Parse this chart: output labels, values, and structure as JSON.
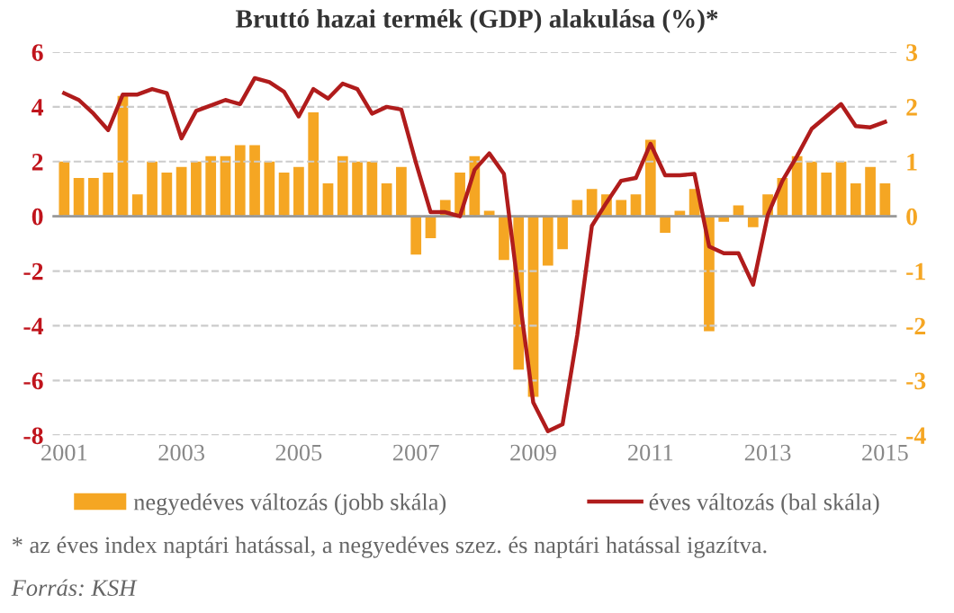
{
  "chart_data": {
    "type": "bar",
    "title": "Bruttó hazai termék (GDP) alakulása (%)*",
    "categories": [
      "2001",
      null,
      null,
      null,
      null,
      null,
      null,
      null,
      "2003",
      null,
      null,
      null,
      null,
      null,
      null,
      null,
      "2005",
      null,
      null,
      null,
      null,
      null,
      null,
      null,
      "2007",
      null,
      null,
      null,
      null,
      null,
      null,
      null,
      "2009",
      null,
      null,
      null,
      null,
      null,
      null,
      null,
      "2011",
      null,
      null,
      null,
      null,
      null,
      null,
      null,
      "2013",
      null,
      null,
      null,
      null,
      null,
      null,
      null,
      "2015"
    ],
    "series": [
      {
        "name": "negyedéves változás (jobb skála)",
        "axis": "y2",
        "color": "#f5a623",
        "values": [
          1.0,
          0.7,
          0.7,
          0.8,
          2.2,
          0.4,
          1.0,
          0.8,
          0.9,
          1.0,
          1.1,
          1.1,
          1.3,
          1.3,
          1.0,
          0.8,
          0.9,
          1.9,
          0.6,
          1.1,
          1.0,
          1.0,
          0.6,
          0.9,
          -0.7,
          -0.4,
          0.3,
          0.8,
          1.1,
          0.1,
          -0.8,
          -2.8,
          -3.3,
          -0.9,
          -0.6,
          0.3,
          0.5,
          0.4,
          0.3,
          0.4,
          1.4,
          -0.3,
          0.1,
          0.5,
          -2.1,
          -0.1,
          0.2,
          -0.2,
          0.4,
          0.7,
          1.1,
          1.0,
          0.8,
          1.0,
          0.6,
          0.9,
          0.6
        ]
      },
      {
        "name": "éves változás (bal skála)",
        "type": "line",
        "color": "#b01c1c",
        "values": [
          4.5,
          4.25,
          3.75,
          3.15,
          4.45,
          4.45,
          4.65,
          4.5,
          2.85,
          3.85,
          4.05,
          4.25,
          4.1,
          5.05,
          4.9,
          4.55,
          3.65,
          4.65,
          4.3,
          4.85,
          4.65,
          3.75,
          4.0,
          3.9,
          1.95,
          0.15,
          0.15,
          0.0,
          1.7,
          2.3,
          1.55,
          -2.75,
          -6.8,
          -7.85,
          -7.6,
          -4.35,
          -0.35,
          0.5,
          1.3,
          1.4,
          2.65,
          1.5,
          1.5,
          1.55,
          -1.1,
          -1.35,
          -1.35,
          -2.5,
          0.05,
          1.3,
          2.2,
          3.2,
          3.65,
          4.1,
          3.3,
          3.25,
          3.45
        ]
      }
    ],
    "ylim": [
      -8,
      6
    ],
    "yticks": [
      -8,
      -6,
      -4,
      -2,
      0,
      2,
      4,
      6
    ],
    "y2lim": [
      -4,
      3
    ],
    "y2ticks": [
      -4,
      -3,
      -2,
      -1,
      0,
      1,
      2,
      3
    ],
    "ref_lines": [
      {
        "axis": "y",
        "value": 0,
        "color": "#999999"
      }
    ],
    "grid": "y",
    "legend": "bottom",
    "marker": "none",
    "line_style": "solid",
    "annotations": [
      "* az éves index naptári hatással, a negyedéves szez. és naptári hatással igazítva.",
      "Forrás: KSH"
    ]
  }
}
